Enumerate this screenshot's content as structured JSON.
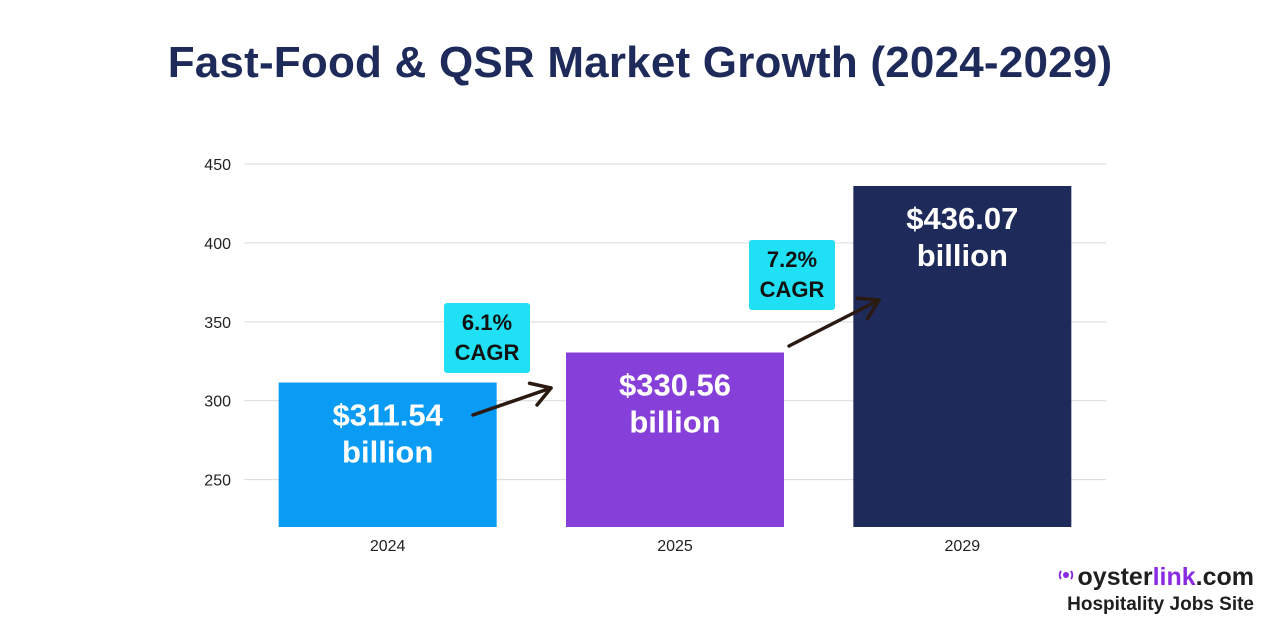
{
  "chart_data": {
    "type": "bar",
    "title": "Fast-Food & QSR Market Growth (2024-2029)",
    "xlabel": "",
    "ylabel": "",
    "ylim": [
      220,
      450
    ],
    "yticks": [
      250,
      300,
      350,
      400,
      450
    ],
    "grid": true,
    "categories": [
      "2024",
      "2025",
      "2029"
    ],
    "values": [
      311.54,
      330.56,
      436.07
    ],
    "colors": [
      "#0a9bf5",
      "#8640d9",
      "#1e2a5a"
    ],
    "bar_labels": [
      [
        "$311.54",
        "billion"
      ],
      [
        "$330.56",
        "billion"
      ],
      [
        "$436.07",
        "billion"
      ]
    ],
    "annotations": [
      {
        "from": "2024",
        "to": "2025",
        "lines": [
          "6.1%",
          "CAGR"
        ],
        "color": "#1fe0f5"
      },
      {
        "from": "2025",
        "to": "2029",
        "lines": [
          "7.2%",
          "CAGR"
        ],
        "color": "#1fe0f5"
      }
    ]
  },
  "brand": {
    "prefix": "oyster",
    "accent": "link",
    "suffix": ".com",
    "tagline": "Hospitality Jobs Site",
    "accent_color": "#8a2be2"
  }
}
